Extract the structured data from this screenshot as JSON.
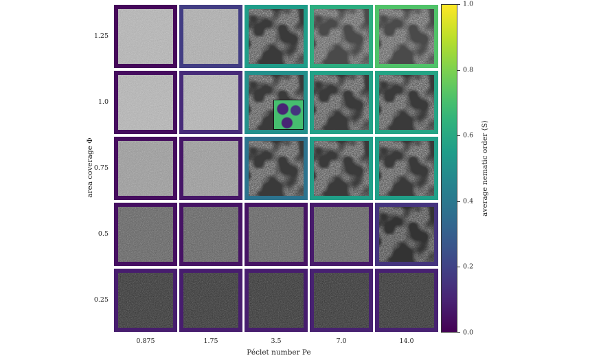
{
  "figure": {
    "xlabel": "Péclet number Pe",
    "ylabel": "area coverage Φ",
    "colorbar_label": "average nematic order ⟨S⟩",
    "colormap": "viridis",
    "colorbar_ticks": [
      "0.0",
      "0.2",
      "0.4",
      "0.6",
      "0.8",
      "1.0"
    ],
    "colorbar_range": [
      0.0,
      1.0
    ]
  },
  "chart_data": {
    "type": "heatmap",
    "x": [
      "0.875",
      "1.75",
      "3.5",
      "7.0",
      "14.0"
    ],
    "y": [
      "1.25",
      "1.0",
      "0.75",
      "0.5",
      "0.25"
    ],
    "xlabel": "Péclet number Pe",
    "ylabel": "area coverage Φ",
    "values": [
      [
        0.02,
        0.18,
        0.55,
        0.62,
        0.72
      ],
      [
        0.03,
        0.12,
        0.5,
        0.57,
        0.58
      ],
      [
        0.03,
        0.06,
        0.38,
        0.56,
        0.56
      ],
      [
        0.04,
        0.05,
        0.05,
        0.07,
        0.15
      ],
      [
        0.08,
        0.08,
        0.08,
        0.09,
        0.09
      ]
    ],
    "panel_texture": [
      [
        "noise-light",
        "noise-light-coarse",
        "network",
        "network-bright",
        "network-bright"
      ],
      [
        "noise-light",
        "noise-light",
        "network-inset",
        "network",
        "network"
      ],
      [
        "noise-mid",
        "noise-mid",
        "network",
        "network",
        "network"
      ],
      [
        "noise-dark",
        "noise-dark",
        "noise-dark",
        "noise-dark",
        "network-dark"
      ],
      [
        "noise-darkest",
        "noise-darkest",
        "noise-darkest",
        "noise-darkest",
        "noise-darkest"
      ]
    ],
    "inset_panel": {
      "row": 1,
      "col": 2,
      "colormap": "viridis"
    }
  }
}
